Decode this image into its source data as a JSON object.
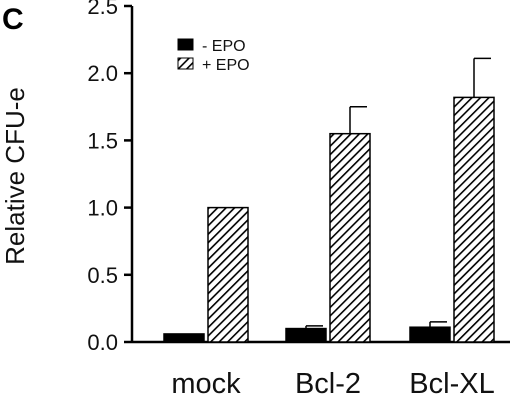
{
  "panel_label": "C",
  "chart_data": {
    "type": "bar",
    "categories": [
      "mock",
      "Bcl-2",
      "Bcl-XL"
    ],
    "series": [
      {
        "name": "- EPO",
        "values": [
          0.06,
          0.1,
          0.11
        ],
        "errors": [
          0.0,
          0.02,
          0.04
        ],
        "fill": "solid",
        "color": "#000000"
      },
      {
        "name": "+ EPO",
        "values": [
          1.0,
          1.55,
          1.82
        ],
        "errors": [
          0.0,
          0.2,
          0.29
        ],
        "fill": "hatched",
        "color": "#000000"
      }
    ],
    "title": "",
    "xlabel": "",
    "ylabel": "Relative CFU-e",
    "ylim": [
      0,
      2.5
    ],
    "yticks": [
      "0.0",
      "0.5",
      "1.0",
      "1.5",
      "2.0",
      "2.5"
    ],
    "legend_position": "top-left",
    "grid": false
  }
}
